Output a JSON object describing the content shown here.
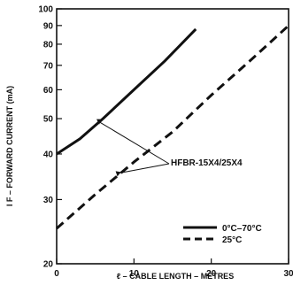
{
  "chart_data": {
    "type": "line",
    "title": "",
    "xlabel": "ℓ – CABLE LENGTH – METRES",
    "ylabel": "I F – FORWARD CURRENT (mA)",
    "xlim": [
      0,
      30
    ],
    "ylim": [
      20,
      100
    ],
    "y_scale": "log",
    "grid": false,
    "x_ticks": [
      "0",
      "10",
      "20",
      "30"
    ],
    "y_ticks": [
      "20",
      "30",
      "40",
      "50",
      "60",
      "70",
      "80",
      "90",
      "100"
    ],
    "legend_position": "bottom-right",
    "series": [
      {
        "name": "0°C–70°C",
        "style": "solid",
        "color": "#111111",
        "x": [
          0,
          3,
          6,
          10,
          14,
          18
        ],
        "y": [
          40,
          44,
          50,
          60,
          72,
          88
        ]
      },
      {
        "name": "25°C",
        "style": "dashed",
        "color": "#111111",
        "x": [
          0,
          5,
          10,
          15,
          20,
          25,
          30
        ],
        "y": [
          25,
          31,
          38,
          46,
          58,
          72,
          90
        ]
      }
    ],
    "annotations": [
      {
        "text": "HFBR-15X4/25X4"
      }
    ]
  }
}
